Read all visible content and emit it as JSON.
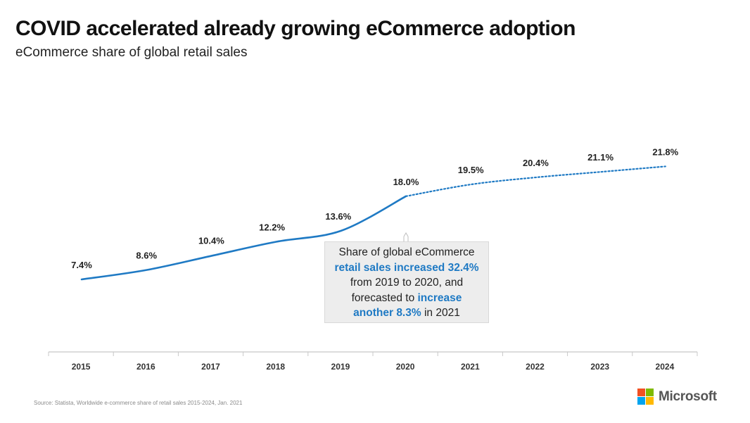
{
  "title": "COVID accelerated already growing eCommerce adoption",
  "subtitle": "eCommerce share of global retail sales",
  "chart_data": {
    "type": "line",
    "title": "COVID accelerated already growing eCommerce adoption",
    "subtitle": "eCommerce share of global retail sales",
    "x": [
      "2015",
      "2016",
      "2017",
      "2018",
      "2019",
      "2020",
      "2021",
      "2022",
      "2023",
      "2024"
    ],
    "values": [
      7.4,
      8.6,
      10.4,
      12.2,
      13.6,
      18.0,
      19.5,
      20.4,
      21.1,
      21.8
    ],
    "data_labels": [
      "7.4%",
      "8.6%",
      "10.4%",
      "12.2%",
      "13.6%",
      "18.0%",
      "19.5%",
      "20.4%",
      "21.1%",
      "21.8%"
    ],
    "actual_through": "2020",
    "forecast_from": "2020",
    "line_color": "#1f7ac4",
    "grid": false,
    "xlabel": "",
    "ylabel": ""
  },
  "callout": {
    "line1": "Share of global eCommerce",
    "line2_highlight": "retail sales increased 32.4%",
    "line3": "from 2019 to 2020, and",
    "line4_plain": "forecasted to ",
    "line4_highlight": "increase",
    "line5_highlight": "another 8.3%",
    "line5_plain": " in 2021",
    "highlight_color": "#1f7ac4"
  },
  "source": "Source: Statista, Worldwide e-commerce share of retail sales 2015-2024, Jan. 2021",
  "logo": {
    "text": "Microsoft",
    "colors": [
      "#f25022",
      "#7fba00",
      "#00a4ef",
      "#ffb900"
    ]
  }
}
